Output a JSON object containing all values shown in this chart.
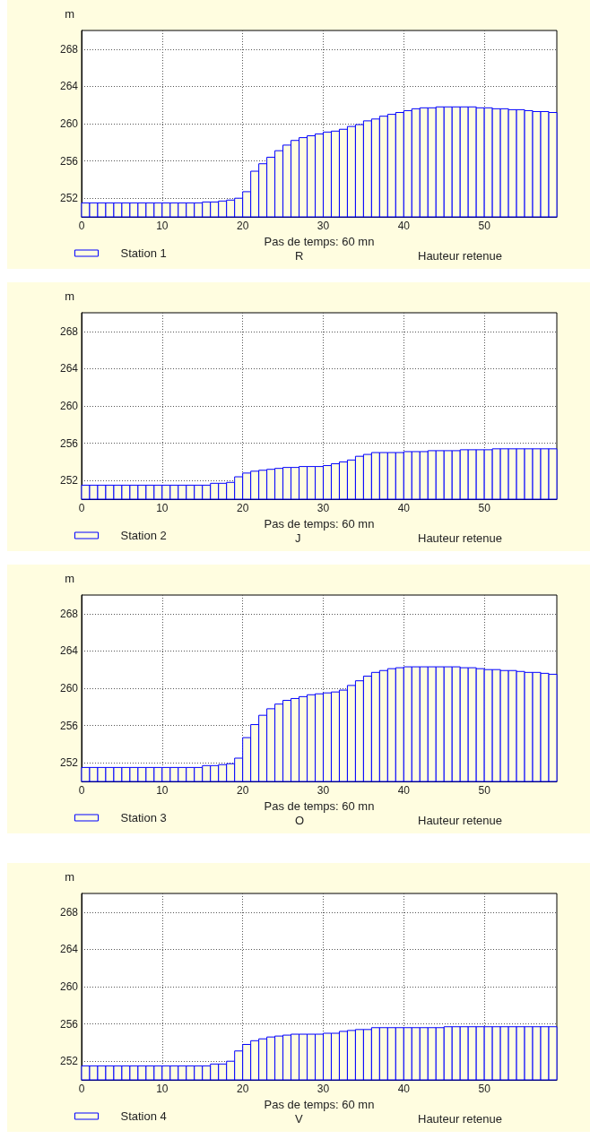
{
  "chart_data": [
    {
      "type": "histogram",
      "xlabel": "Pas de temps: 60 mn",
      "ylabel": "m",
      "bins": [
        0,
        1,
        2,
        3,
        4,
        5,
        6,
        7,
        8,
        9,
        10,
        11,
        12,
        13,
        14,
        15,
        16,
        17,
        18,
        19,
        20,
        21,
        22,
        23,
        24,
        25,
        26,
        27,
        28,
        29,
        30,
        31,
        32,
        33,
        34,
        35,
        36,
        37,
        38,
        39,
        40,
        41,
        42,
        43,
        44,
        45,
        46,
        47,
        48,
        49,
        50,
        51,
        52,
        53,
        54,
        55,
        56,
        57,
        58,
        59
      ],
      "series": [
        {
          "name": "Station 1",
          "color": "#0000ff",
          "values": [
            251.5,
            251.5,
            251.5,
            251.5,
            251.5,
            251.5,
            251.5,
            251.5,
            251.5,
            251.5,
            251.5,
            251.5,
            251.5,
            251.5,
            251.5,
            251.6,
            251.6,
            251.7,
            251.8,
            252.0,
            252.7,
            254.9,
            255.7,
            256.4,
            257.1,
            257.7,
            258.2,
            258.5,
            258.7,
            258.9,
            259.1,
            259.2,
            259.4,
            259.7,
            259.9,
            260.3,
            260.5,
            260.8,
            261.0,
            261.2,
            261.4,
            261.6,
            261.7,
            261.7,
            261.8,
            261.8,
            261.8,
            261.8,
            261.8,
            261.7,
            261.7,
            261.6,
            261.6,
            261.5,
            261.5,
            261.4,
            261.3,
            261.3,
            261.2
          ]
        }
      ],
      "annotations": [
        "R",
        "Hauteur retenue"
      ],
      "xlim": [
        0,
        59
      ],
      "xticks": [
        0,
        10,
        20,
        30,
        40,
        50
      ],
      "ylim": [
        250,
        270
      ],
      "yticks": [
        252,
        256,
        260,
        264,
        268
      ],
      "grid": true,
      "legend": "bottom"
    },
    {
      "type": "histogram",
      "xlabel": "Pas de temps: 60 mn",
      "ylabel": "m",
      "bins": [
        0,
        1,
        2,
        3,
        4,
        5,
        6,
        7,
        8,
        9,
        10,
        11,
        12,
        13,
        14,
        15,
        16,
        17,
        18,
        19,
        20,
        21,
        22,
        23,
        24,
        25,
        26,
        27,
        28,
        29,
        30,
        31,
        32,
        33,
        34,
        35,
        36,
        37,
        38,
        39,
        40,
        41,
        42,
        43,
        44,
        45,
        46,
        47,
        48,
        49,
        50,
        51,
        52,
        53,
        54,
        55,
        56,
        57,
        58,
        59
      ],
      "series": [
        {
          "name": "Station 2",
          "color": "#0000ff",
          "values": [
            251.5,
            251.5,
            251.5,
            251.5,
            251.5,
            251.5,
            251.5,
            251.5,
            251.5,
            251.5,
            251.5,
            251.5,
            251.5,
            251.5,
            251.5,
            251.5,
            251.7,
            251.7,
            251.8,
            252.4,
            252.8,
            253.0,
            253.1,
            253.2,
            253.3,
            253.4,
            253.4,
            253.5,
            253.5,
            253.5,
            253.6,
            253.8,
            254.0,
            254.2,
            254.6,
            254.8,
            255.0,
            255.0,
            255.0,
            255.0,
            255.1,
            255.1,
            255.1,
            255.2,
            255.2,
            255.2,
            255.2,
            255.3,
            255.3,
            255.3,
            255.3,
            255.4,
            255.4,
            255.4,
            255.4,
            255.4,
            255.4,
            255.4,
            255.4
          ]
        }
      ],
      "annotations": [
        "J",
        "Hauteur retenue"
      ],
      "xlim": [
        0,
        59
      ],
      "xticks": [
        0,
        10,
        20,
        30,
        40,
        50
      ],
      "ylim": [
        250,
        270
      ],
      "yticks": [
        252,
        256,
        260,
        264,
        268
      ],
      "grid": true,
      "legend": "bottom"
    },
    {
      "type": "histogram",
      "xlabel": "Pas de temps: 60 mn",
      "ylabel": "m",
      "bins": [
        0,
        1,
        2,
        3,
        4,
        5,
        6,
        7,
        8,
        9,
        10,
        11,
        12,
        13,
        14,
        15,
        16,
        17,
        18,
        19,
        20,
        21,
        22,
        23,
        24,
        25,
        26,
        27,
        28,
        29,
        30,
        31,
        32,
        33,
        34,
        35,
        36,
        37,
        38,
        39,
        40,
        41,
        42,
        43,
        44,
        45,
        46,
        47,
        48,
        49,
        50,
        51,
        52,
        53,
        54,
        55,
        56,
        57,
        58,
        59
      ],
      "series": [
        {
          "name": "Station 3",
          "color": "#0000ff",
          "values": [
            251.5,
            251.5,
            251.5,
            251.5,
            251.5,
            251.5,
            251.5,
            251.5,
            251.5,
            251.5,
            251.5,
            251.5,
            251.5,
            251.5,
            251.5,
            251.7,
            251.7,
            251.8,
            251.9,
            252.5,
            254.7,
            256.1,
            257.1,
            257.8,
            258.3,
            258.7,
            258.9,
            259.1,
            259.3,
            259.4,
            259.5,
            259.6,
            259.8,
            260.3,
            260.8,
            261.3,
            261.7,
            261.9,
            262.1,
            262.2,
            262.3,
            262.3,
            262.3,
            262.3,
            262.3,
            262.3,
            262.3,
            262.2,
            262.2,
            262.1,
            262.0,
            262.0,
            261.9,
            261.9,
            261.8,
            261.7,
            261.7,
            261.6,
            261.5
          ]
        }
      ],
      "annotations": [
        "O",
        "Hauteur retenue"
      ],
      "xlim": [
        0,
        59
      ],
      "xticks": [
        0,
        10,
        20,
        30,
        40,
        50
      ],
      "ylim": [
        250,
        270
      ],
      "yticks": [
        252,
        256,
        260,
        264,
        268
      ],
      "grid": true,
      "legend": "bottom"
    },
    {
      "type": "histogram",
      "xlabel": "Pas de temps: 60 mn",
      "ylabel": "m",
      "bins": [
        0,
        1,
        2,
        3,
        4,
        5,
        6,
        7,
        8,
        9,
        10,
        11,
        12,
        13,
        14,
        15,
        16,
        17,
        18,
        19,
        20,
        21,
        22,
        23,
        24,
        25,
        26,
        27,
        28,
        29,
        30,
        31,
        32,
        33,
        34,
        35,
        36,
        37,
        38,
        39,
        40,
        41,
        42,
        43,
        44,
        45,
        46,
        47,
        48,
        49,
        50,
        51,
        52,
        53,
        54,
        55,
        56,
        57,
        58,
        59
      ],
      "series": [
        {
          "name": "Station 4",
          "color": "#0000ff",
          "values": [
            251.5,
            251.5,
            251.5,
            251.5,
            251.5,
            251.5,
            251.5,
            251.5,
            251.5,
            251.5,
            251.5,
            251.5,
            251.5,
            251.5,
            251.5,
            251.5,
            251.7,
            251.7,
            252.0,
            253.1,
            253.8,
            254.2,
            254.4,
            254.6,
            254.7,
            254.8,
            254.9,
            254.9,
            254.9,
            254.9,
            255.0,
            255.0,
            255.2,
            255.3,
            255.4,
            255.4,
            255.6,
            255.6,
            255.6,
            255.6,
            255.6,
            255.6,
            255.6,
            255.6,
            255.6,
            255.7,
            255.7,
            255.7,
            255.7,
            255.7,
            255.7,
            255.7,
            255.7,
            255.7,
            255.7,
            255.7,
            255.7,
            255.7,
            255.7
          ]
        }
      ],
      "annotations": [
        "V",
        "Hauteur retenue"
      ],
      "xlim": [
        0,
        59
      ],
      "xticks": [
        0,
        10,
        20,
        30,
        40,
        50
      ],
      "ylim": [
        250,
        270
      ],
      "yticks": [
        252,
        256,
        260,
        264,
        268
      ],
      "grid": true,
      "legend": "bottom"
    }
  ]
}
